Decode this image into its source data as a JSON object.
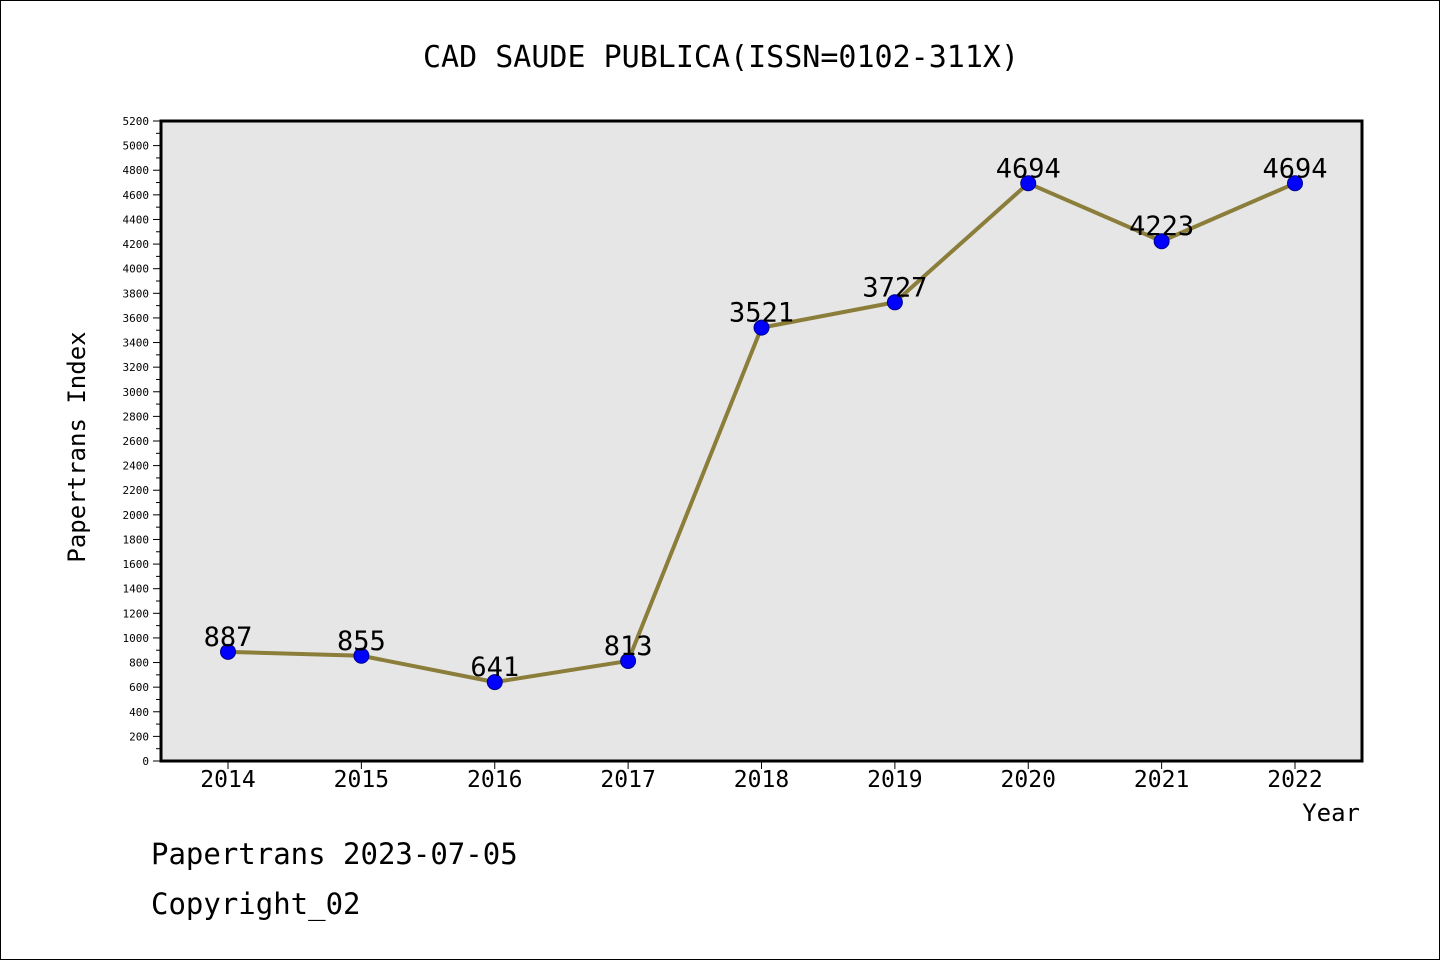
{
  "chart_data": {
    "type": "line",
    "title": "CAD SAUDE PUBLICA(ISSN=0102-311X)",
    "xlabel": "Year",
    "ylabel": "Papertrans Index",
    "categories": [
      "2014",
      "2015",
      "2016",
      "2017",
      "2018",
      "2019",
      "2020",
      "2021",
      "2022"
    ],
    "series": [
      {
        "values": [
          887,
          855,
          641,
          813,
          3521,
          3727,
          4694,
          4223,
          4694
        ]
      }
    ],
    "data_labels": [
      "887",
      "855",
      "641",
      "813",
      "3521",
      "3727",
      "4694",
      "4223",
      "4694"
    ],
    "ylim": [
      0,
      5200
    ],
    "y_ticks": [
      "0",
      "200",
      "400",
      "600",
      "800",
      "1000",
      "1200",
      "1400",
      "1600",
      "1800",
      "2000",
      "2200",
      "2400",
      "2600",
      "2800",
      "3000",
      "3200",
      "3400",
      "3600",
      "3800",
      "4000",
      "4200",
      "4400",
      "4600",
      "4800",
      "5000",
      "5200"
    ],
    "grid": false,
    "legend": "none",
    "colors": {
      "line": "#8B7D3A",
      "marker": "#0000FF",
      "plot_background": "#E6E6E6",
      "axis": "#000000"
    }
  },
  "footer": {
    "date_text": "Papertrans 2023-07-05",
    "copyright_text": "Copyright_02"
  }
}
